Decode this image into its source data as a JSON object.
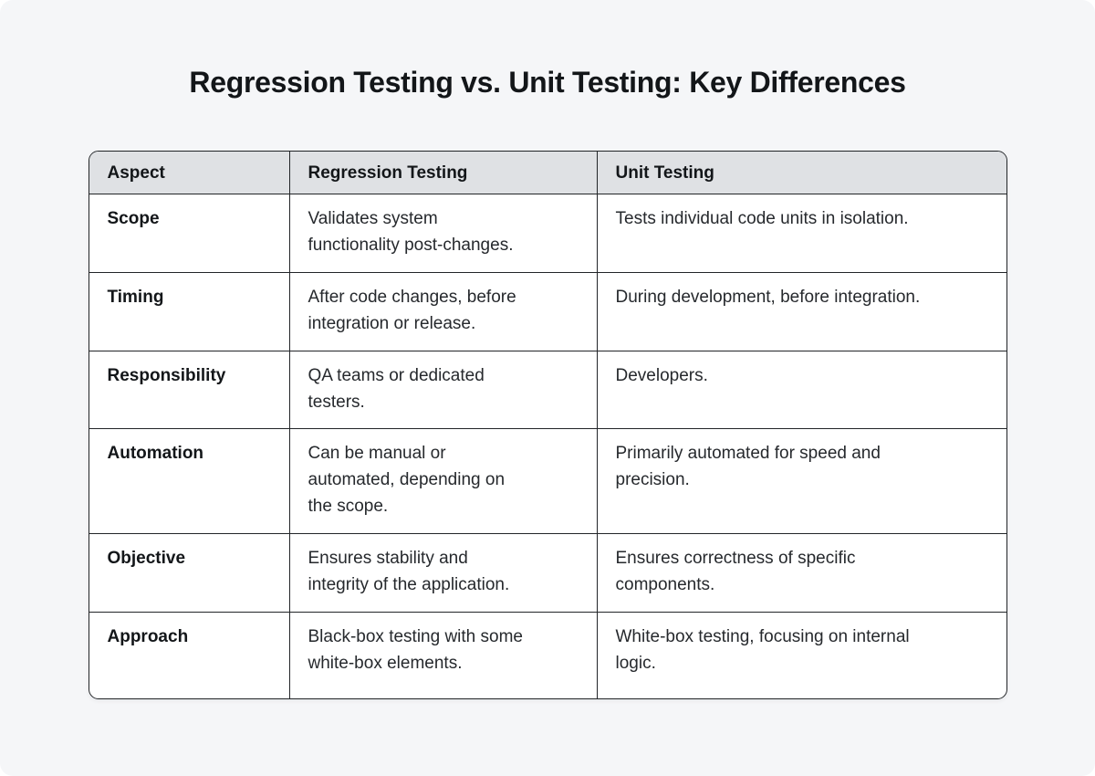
{
  "page": {
    "title": "Regression Testing vs. Unit Testing: Key Differences"
  },
  "table": {
    "columns": [
      "Aspect",
      "Regression Testing",
      "Unit Testing"
    ],
    "rows": [
      {
        "aspect": "Scope",
        "regression": "Validates system\nfunctionality post-changes.",
        "unit": "Tests individual code units in isolation."
      },
      {
        "aspect": "Timing",
        "regression": "After code changes, before\nintegration or release.",
        "unit": "During development, before integration."
      },
      {
        "aspect": "Responsibility",
        "regression": "QA teams or dedicated\ntesters.",
        "unit": "Developers."
      },
      {
        "aspect": "Automation",
        "regression": "Can be manual or\nautomated, depending on\nthe scope.",
        "unit": "Primarily automated for speed and\nprecision."
      },
      {
        "aspect": "Objective",
        "regression": "Ensures stability and\nintegrity of the application.",
        "unit": "Ensures correctness of specific\ncomponents."
      },
      {
        "aspect": "Approach",
        "regression": "Black-box testing with some\nwhite-box elements.",
        "unit": "White-box testing, focusing on internal\nlogic."
      }
    ]
  },
  "colors": {
    "page_bg": "#f5f6f8",
    "table_bg": "#ffffff",
    "header_bg": "#dfe1e4",
    "line": "#222528",
    "title_text": "#131619",
    "body_text": "#26292d"
  }
}
